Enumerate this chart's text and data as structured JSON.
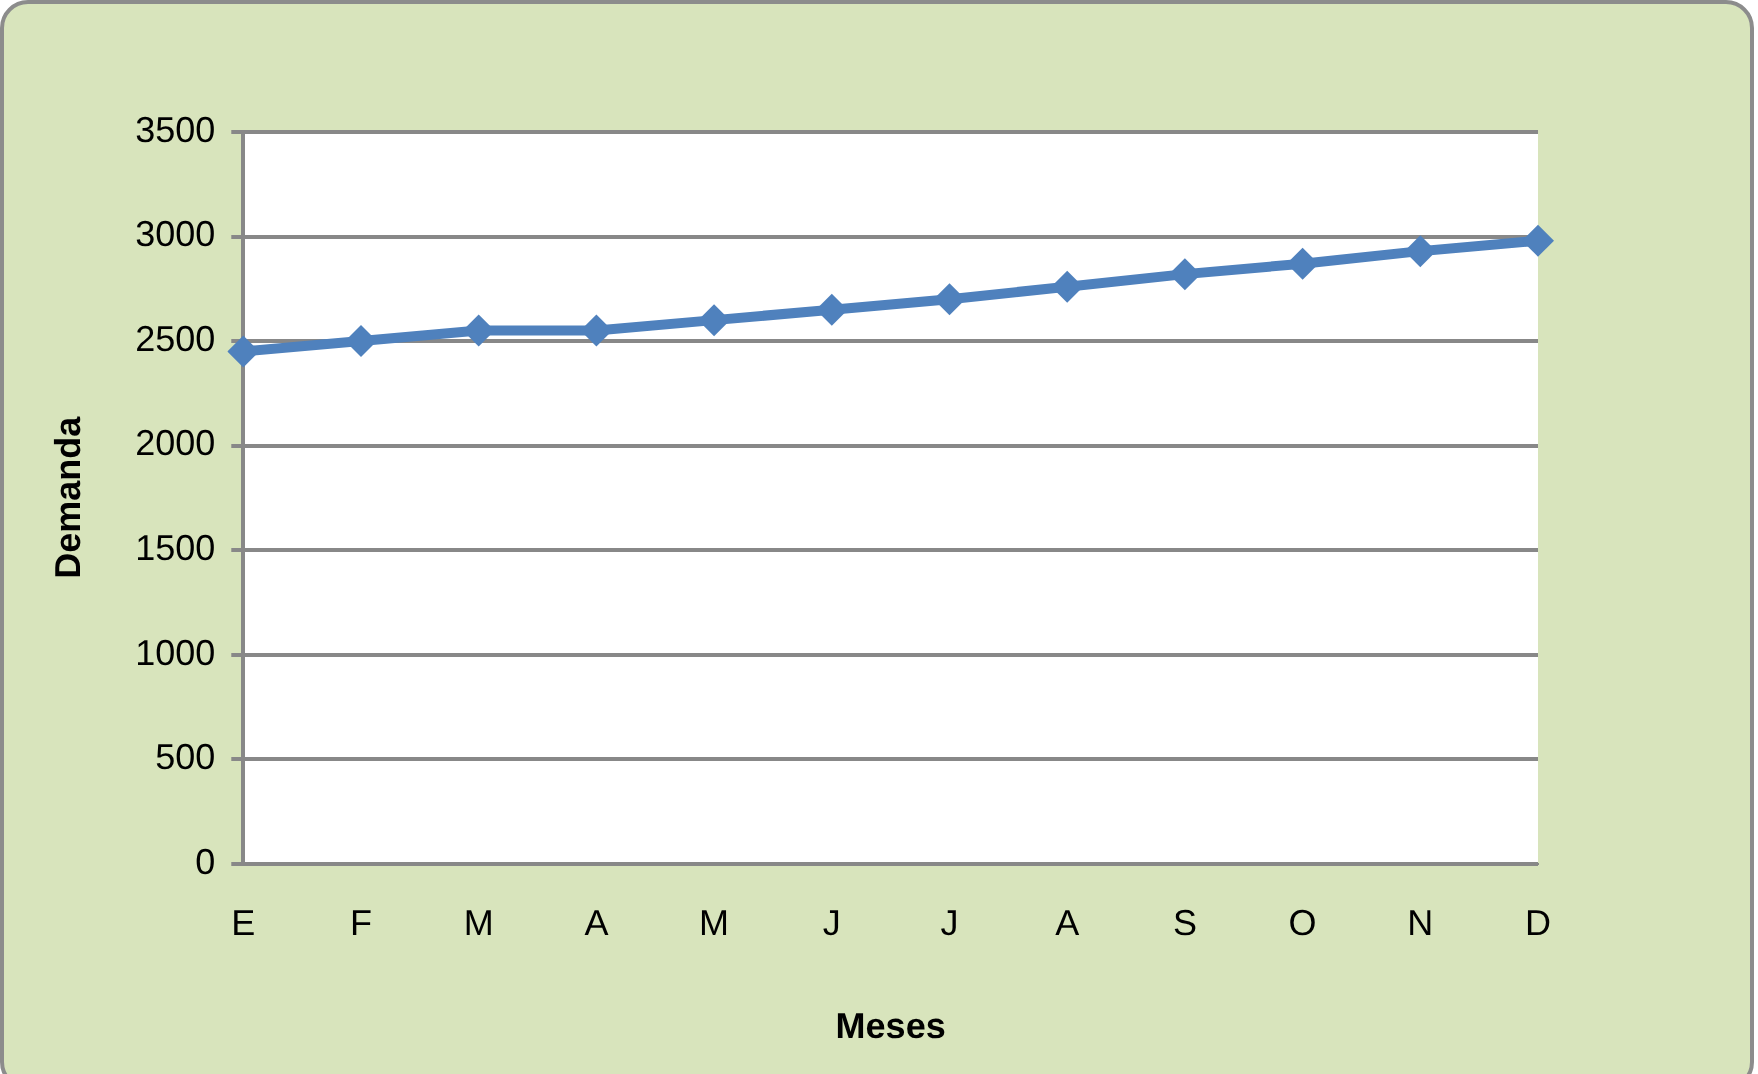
{
  "chart_data": {
    "type": "line",
    "xlabel": "Meses",
    "ylabel": "Demanda",
    "categories": [
      "E",
      "F",
      "M",
      "A",
      "M",
      "J",
      "J",
      "A",
      "S",
      "O",
      "N",
      "D"
    ],
    "series": [
      {
        "color": "#4f81bd",
        "values": [
          2450,
          2500,
          2550,
          2550,
          2600,
          2650,
          2700,
          2760,
          2820,
          2870,
          2930,
          2980
        ]
      }
    ],
    "ylim": [
      0,
      3500
    ],
    "yticks": [
      0,
      500,
      1000,
      1500,
      2000,
      2500,
      3000,
      3500
    ],
    "grid": "y",
    "legend": false,
    "marker": "diamond",
    "line_style": "solid"
  }
}
